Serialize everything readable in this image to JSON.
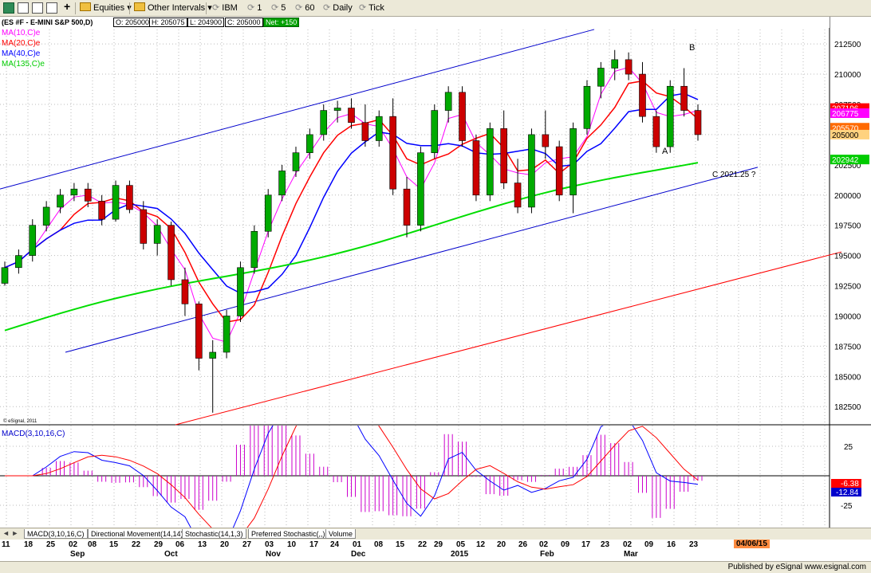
{
  "toolbar": {
    "equities_label": "Equities",
    "other_intervals_label": "Other Intervals",
    "ibm_label": "IBM",
    "one_label": "1",
    "five_label": "5",
    "sixty_label": "60",
    "daily_label": "Daily",
    "tick_label": "Tick"
  },
  "chart_header": {
    "symbol": "(ES #F - E-MINI S&P 500,D)",
    "open": "O: 205000",
    "high": "H: 205075",
    "low": "L: 204900",
    "close": "C: 205000",
    "net": "Net: +150"
  },
  "legend": {
    "ma10": "MA(10,C)e",
    "ma20": "MA(20,C)e",
    "ma40": "MA(40,C)e",
    "ma135": "MA(135,C)e"
  },
  "colors": {
    "candle_up": "#00aa00",
    "candle_down": "#cc0000",
    "ma10": "#ff00ff",
    "ma20": "#ff0000",
    "ma40": "#0000ff",
    "ma135": "#00dd00",
    "channel_blue": "#0000cc",
    "channel_red": "#ff0000",
    "macd_line": "#0000ff",
    "signal_line": "#ff0000",
    "histogram": "#cc00cc"
  },
  "price_axis": {
    "ticks": [
      "212500",
      "210000",
      "207500",
      "205000",
      "202500",
      "200000",
      "197500",
      "195000",
      "192500",
      "190000",
      "187500",
      "185000",
      "182500"
    ]
  },
  "price_labels": {
    "ma20_value": "207196",
    "ma40_value": "206775",
    "last_value": "205570",
    "close_value": "205000",
    "ma135_value": "202942"
  },
  "annotations": {
    "b": "B",
    "a": "A",
    "c": "C 2021.25 ?"
  },
  "copyright": "© eSignal, 2011",
  "macd": {
    "label": "MACD(3,10,16,C)",
    "ticks": [
      "25",
      "-25"
    ],
    "value_signal": "-6.38",
    "value_macd": "-12.84"
  },
  "tabs": [
    "MACD(3,10,16,C)",
    "Directional Movement(14,14)",
    "Stochastic(14,1,3)",
    "Preferred Stochastic(,,)",
    "Volume"
  ],
  "xaxis": {
    "days": [
      "11",
      "18",
      "25",
      "02",
      "08",
      "15",
      "22",
      "29",
      "06",
      "13",
      "20",
      "27",
      "03",
      "10",
      "17",
      "24",
      "01",
      "08",
      "15",
      "22",
      "29",
      "05",
      "12",
      "20",
      "26",
      "02",
      "09",
      "17",
      "23",
      "02",
      "09",
      "16",
      "23"
    ],
    "months": [
      "Sep",
      "Oct",
      "Nov",
      "Dec",
      "2015",
      "Feb",
      "Mar"
    ],
    "date_badge": "04/06/15"
  },
  "status": {
    "published": "Published by eSignal   www.esignal.com"
  },
  "chart_data": {
    "type": "candlestick",
    "title": "(ES #F - E-MINI S&P 500,D)",
    "ylim": [
      181000,
      213500
    ],
    "ohlc_approx": [
      [
        1927,
        1945,
        1925,
        1940
      ],
      [
        1940,
        1955,
        1935,
        1950
      ],
      [
        1950,
        1980,
        1945,
        1975
      ],
      [
        1975,
        1995,
        1970,
        1990
      ],
      [
        1990,
        2005,
        1985,
        2000
      ],
      [
        2000,
        2010,
        1995,
        2005
      ],
      [
        2005,
        2010,
        1990,
        1995
      ],
      [
        1995,
        2000,
        1975,
        1980
      ],
      [
        1980,
        2012,
        1978,
        2008
      ],
      [
        2008,
        2012,
        1985,
        1988
      ],
      [
        1988,
        1995,
        1955,
        1960
      ],
      [
        1960,
        1980,
        1950,
        1975
      ],
      [
        1975,
        1978,
        1925,
        1930
      ],
      [
        1930,
        1940,
        1900,
        1910
      ],
      [
        1910,
        1912,
        1855,
        1865
      ],
      [
        1865,
        1880,
        1820,
        1870
      ],
      [
        1870,
        1905,
        1865,
        1900
      ],
      [
        1900,
        1945,
        1895,
        1940
      ],
      [
        1940,
        1975,
        1935,
        1970
      ],
      [
        1970,
        2005,
        1965,
        2000
      ],
      [
        2000,
        2025,
        1995,
        2020
      ],
      [
        2020,
        2040,
        2015,
        2035
      ],
      [
        2035,
        2055,
        2030,
        2050
      ],
      [
        2050,
        2075,
        2045,
        2070
      ],
      [
        2070,
        2078,
        2060,
        2072
      ],
      [
        2072,
        2080,
        2055,
        2060
      ],
      [
        2060,
        2075,
        2040,
        2045
      ],
      [
        2045,
        2070,
        2040,
        2065
      ],
      [
        2065,
        2080,
        2000,
        2005
      ],
      [
        2005,
        2015,
        1965,
        1975
      ],
      [
        1975,
        2040,
        1970,
        2035
      ],
      [
        2035,
        2075,
        2030,
        2070
      ],
      [
        2070,
        2090,
        2060,
        2085
      ],
      [
        2085,
        2090,
        2040,
        2045
      ],
      [
        2045,
        2050,
        1995,
        2000
      ],
      [
        2000,
        2060,
        1995,
        2055
      ],
      [
        2055,
        2070,
        2005,
        2010
      ],
      [
        2010,
        2030,
        1985,
        1990
      ],
      [
        1990,
        2055,
        1985,
        2050
      ],
      [
        2050,
        2070,
        2030,
        2040
      ],
      [
        2040,
        2045,
        1995,
        2000
      ],
      [
        2000,
        2060,
        1985,
        2055
      ],
      [
        2055,
        2095,
        2050,
        2090
      ],
      [
        2090,
        2110,
        2080,
        2105
      ],
      [
        2105,
        2120,
        2095,
        2112
      ],
      [
        2112,
        2118,
        2095,
        2100
      ],
      [
        2100,
        2110,
        2060,
        2065
      ],
      [
        2065,
        2070,
        2035,
        2040
      ],
      [
        2040,
        2095,
        2035,
        2090
      ],
      [
        2090,
        2105,
        2065,
        2070
      ],
      [
        2070,
        2075,
        2045,
        2050
      ]
    ]
  }
}
